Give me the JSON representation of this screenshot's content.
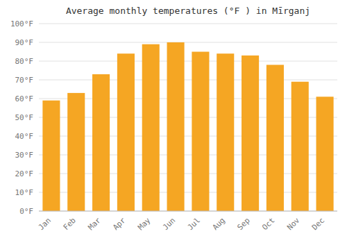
{
  "chart_data": {
    "type": "bar",
    "title": "Average monthly temperatures (°F ) in Mīrganj",
    "categories": [
      "Jan",
      "Feb",
      "Mar",
      "Apr",
      "May",
      "Jun",
      "Jul",
      "Aug",
      "Sep",
      "Oct",
      "Nov",
      "Dec"
    ],
    "values": [
      59,
      63,
      73,
      84,
      89,
      90,
      85,
      84,
      83,
      78,
      69,
      61
    ],
    "color": "#F5A623",
    "ylim": [
      0,
      100
    ],
    "yticks": [
      {
        "value": 0,
        "label": "0°F"
      },
      {
        "value": 10,
        "label": "10°F"
      },
      {
        "value": 20,
        "label": "20°F"
      },
      {
        "value": 30,
        "label": "30°F"
      },
      {
        "value": 40,
        "label": "40°F"
      },
      {
        "value": 50,
        "label": "50°F"
      },
      {
        "value": 60,
        "label": "60°F"
      },
      {
        "value": 70,
        "label": "70°F"
      },
      {
        "value": 80,
        "label": "80°F"
      },
      {
        "value": 90,
        "label": "90°F"
      },
      {
        "value": 100,
        "label": "100°F"
      }
    ],
    "grid": true
  }
}
